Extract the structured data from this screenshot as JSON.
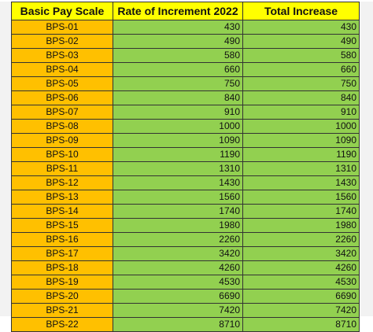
{
  "table": {
    "headers": [
      "Basic Pay Scale",
      "Rate of Increment 2022",
      "Total Increase"
    ],
    "rows": [
      [
        "BPS-01",
        "430",
        "430"
      ],
      [
        "BPS-02",
        "490",
        "490"
      ],
      [
        "BPS-03",
        "580",
        "580"
      ],
      [
        "BPS-04",
        "660",
        "660"
      ],
      [
        "BPS-05",
        "750",
        "750"
      ],
      [
        "BPS-06",
        "840",
        "840"
      ],
      [
        "BPS-07",
        "910",
        "910"
      ],
      [
        "BPS-08",
        "1000",
        "1000"
      ],
      [
        "BPS-09",
        "1090",
        "1090"
      ],
      [
        "BPS-10",
        "1190",
        "1190"
      ],
      [
        "BPS-11",
        "1310",
        "1310"
      ],
      [
        "BPS-12",
        "1430",
        "1430"
      ],
      [
        "BPS-13",
        "1560",
        "1560"
      ],
      [
        "BPS-14",
        "1740",
        "1740"
      ],
      [
        "BPS-15",
        "1980",
        "1980"
      ],
      [
        "BPS-16",
        "2260",
        "2260"
      ],
      [
        "BPS-17",
        "3420",
        "3420"
      ],
      [
        "BPS-18",
        "4260",
        "4260"
      ],
      [
        "BPS-19",
        "4530",
        "4530"
      ],
      [
        "BPS-20",
        "6690",
        "6690"
      ],
      [
        "BPS-21",
        "7420",
        "7420"
      ],
      [
        "BPS-22",
        "8710",
        "8710"
      ]
    ]
  },
  "colors": {
    "header_bg": "#ffff00",
    "scale_bg": "#ffc000",
    "value_bg": "#92d050"
  }
}
